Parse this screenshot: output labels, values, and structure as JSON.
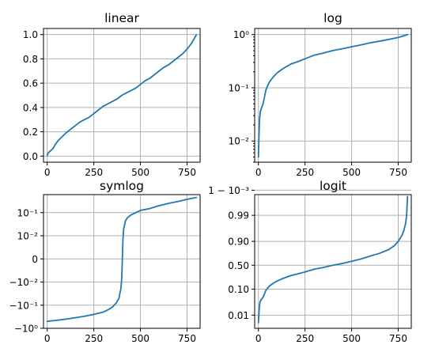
{
  "figure": {
    "style": {
      "line_color": "#1f77b4",
      "grid_color": "#b0b0b0",
      "grid": true
    }
  },
  "chart_data": [
    {
      "type": "line",
      "title": "linear",
      "scale": "linear",
      "xlim": [
        -20,
        820
      ],
      "ylim": [
        -0.05,
        1.05
      ],
      "xticks": [
        {
          "v": 0,
          "label": "0"
        },
        {
          "v": 250,
          "label": "250"
        },
        {
          "v": 500,
          "label": "500"
        },
        {
          "v": 750,
          "label": "750"
        }
      ],
      "yticks": [
        {
          "v": 0.0,
          "label": "0.0"
        },
        {
          "v": 0.2,
          "label": "0.2"
        },
        {
          "v": 0.4,
          "label": "0.4"
        },
        {
          "v": 0.6,
          "label": "0.6"
        },
        {
          "v": 0.8,
          "label": "0.8"
        },
        {
          "v": 1.0,
          "label": "1.0"
        }
      ],
      "series": [
        {
          "x": [
            0,
            3,
            8,
            15,
            22,
            30,
            45,
            60,
            80,
            100,
            125,
            150,
            175,
            200,
            225,
            250,
            275,
            300,
            325,
            350,
            375,
            400,
            425,
            450,
            475,
            500,
            525,
            550,
            575,
            600,
            625,
            650,
            675,
            700,
            725,
            750,
            775,
            800
          ],
          "y": [
            0.005,
            0.02,
            0.03,
            0.04,
            0.05,
            0.06,
            0.1,
            0.13,
            0.16,
            0.19,
            0.22,
            0.25,
            0.28,
            0.3,
            0.32,
            0.35,
            0.38,
            0.41,
            0.43,
            0.45,
            0.47,
            0.5,
            0.52,
            0.54,
            0.56,
            0.59,
            0.62,
            0.64,
            0.67,
            0.7,
            0.73,
            0.75,
            0.78,
            0.81,
            0.84,
            0.88,
            0.93,
            0.998
          ]
        }
      ]
    },
    {
      "type": "line",
      "title": "log",
      "scale": "log",
      "xlim": [
        -20,
        820
      ],
      "ylim": [
        0.004,
        1.3
      ],
      "xticks": [
        {
          "v": 0,
          "label": "0"
        },
        {
          "v": 250,
          "label": "250"
        },
        {
          "v": 500,
          "label": "500"
        },
        {
          "v": 750,
          "label": "750"
        }
      ],
      "yticks": [
        {
          "v": 0.01,
          "label": "10⁻²"
        },
        {
          "v": 0.1,
          "label": "10⁻¹"
        },
        {
          "v": 1,
          "label": "10⁰"
        }
      ],
      "series": [
        {
          "x": [
            0,
            3,
            6,
            10,
            15,
            20,
            25,
            30,
            40,
            50,
            60,
            80,
            100,
            125,
            150,
            175,
            200,
            250,
            300,
            350,
            400,
            450,
            500,
            550,
            600,
            650,
            700,
            750,
            800
          ],
          "y": [
            0.005,
            0.012,
            0.025,
            0.035,
            0.04,
            0.045,
            0.05,
            0.06,
            0.09,
            0.11,
            0.13,
            0.16,
            0.19,
            0.22,
            0.25,
            0.28,
            0.3,
            0.35,
            0.41,
            0.45,
            0.5,
            0.54,
            0.59,
            0.64,
            0.7,
            0.75,
            0.81,
            0.88,
            0.998
          ]
        }
      ]
    },
    {
      "type": "line",
      "title": "symlog",
      "scale": "symlog",
      "linthresh": 0.01,
      "xlim": [
        -20,
        820
      ],
      "ylim": [
        -1,
        0.6
      ],
      "xticks": [
        {
          "v": 0,
          "label": "0"
        },
        {
          "v": 250,
          "label": "250"
        },
        {
          "v": 500,
          "label": "500"
        },
        {
          "v": 750,
          "label": "750"
        }
      ],
      "yticks": [
        {
          "v": -1,
          "label": "−10⁰"
        },
        {
          "v": -0.1,
          "label": "−10⁻¹"
        },
        {
          "v": -0.01,
          "label": "−10⁻²"
        },
        {
          "v": 0,
          "label": "0"
        },
        {
          "v": 0.01,
          "label": "10⁻²"
        },
        {
          "v": 0.1,
          "label": "10⁻¹"
        }
      ],
      "series": [
        {
          "x": [
            0,
            50,
            100,
            150,
            200,
            250,
            300,
            325,
            350,
            370,
            385,
            390,
            395,
            400,
            403,
            406,
            410,
            415,
            420,
            430,
            450,
            475,
            500,
            550,
            600,
            650,
            700,
            750,
            800
          ],
          "y": [
            -0.5,
            -0.45,
            -0.4,
            -0.35,
            -0.3,
            -0.25,
            -0.2,
            -0.16,
            -0.12,
            -0.08,
            -0.05,
            -0.03,
            -0.02,
            -0.008,
            0,
            0.008,
            0.02,
            0.03,
            0.045,
            0.06,
            0.08,
            0.1,
            0.125,
            0.15,
            0.2,
            0.25,
            0.3,
            0.375,
            0.45
          ]
        }
      ]
    },
    {
      "type": "line",
      "title": "logit",
      "scale": "logit",
      "xlim": [
        -20,
        820
      ],
      "ylim": [
        0.003,
        0.9985
      ],
      "xticks": [
        {
          "v": 0,
          "label": "0"
        },
        {
          "v": 250,
          "label": "250"
        },
        {
          "v": 500,
          "label": "500"
        },
        {
          "v": 750,
          "label": "750"
        }
      ],
      "yticks": [
        {
          "v": 0.01,
          "label": "0.01"
        },
        {
          "v": 0.1,
          "label": "0.10"
        },
        {
          "v": 0.5,
          "label": "0.50"
        },
        {
          "v": 0.9,
          "label": "0.90"
        },
        {
          "v": 0.99,
          "label": "0.99"
        },
        {
          "v": 0.999,
          "label": "1 − 10⁻³"
        }
      ],
      "series": [
        {
          "x": [
            0,
            3,
            6,
            10,
            15,
            20,
            25,
            30,
            40,
            50,
            60,
            80,
            100,
            125,
            150,
            175,
            200,
            250,
            300,
            350,
            400,
            450,
            500,
            550,
            600,
            650,
            700,
            730,
            750,
            770,
            780,
            790,
            795,
            800
          ],
          "y": [
            0.005,
            0.012,
            0.025,
            0.035,
            0.04,
            0.045,
            0.05,
            0.06,
            0.09,
            0.11,
            0.13,
            0.16,
            0.19,
            0.22,
            0.25,
            0.28,
            0.3,
            0.35,
            0.41,
            0.45,
            0.5,
            0.54,
            0.59,
            0.64,
            0.7,
            0.75,
            0.81,
            0.86,
            0.9,
            0.94,
            0.96,
            0.98,
            0.99,
            0.9982
          ]
        }
      ]
    }
  ]
}
